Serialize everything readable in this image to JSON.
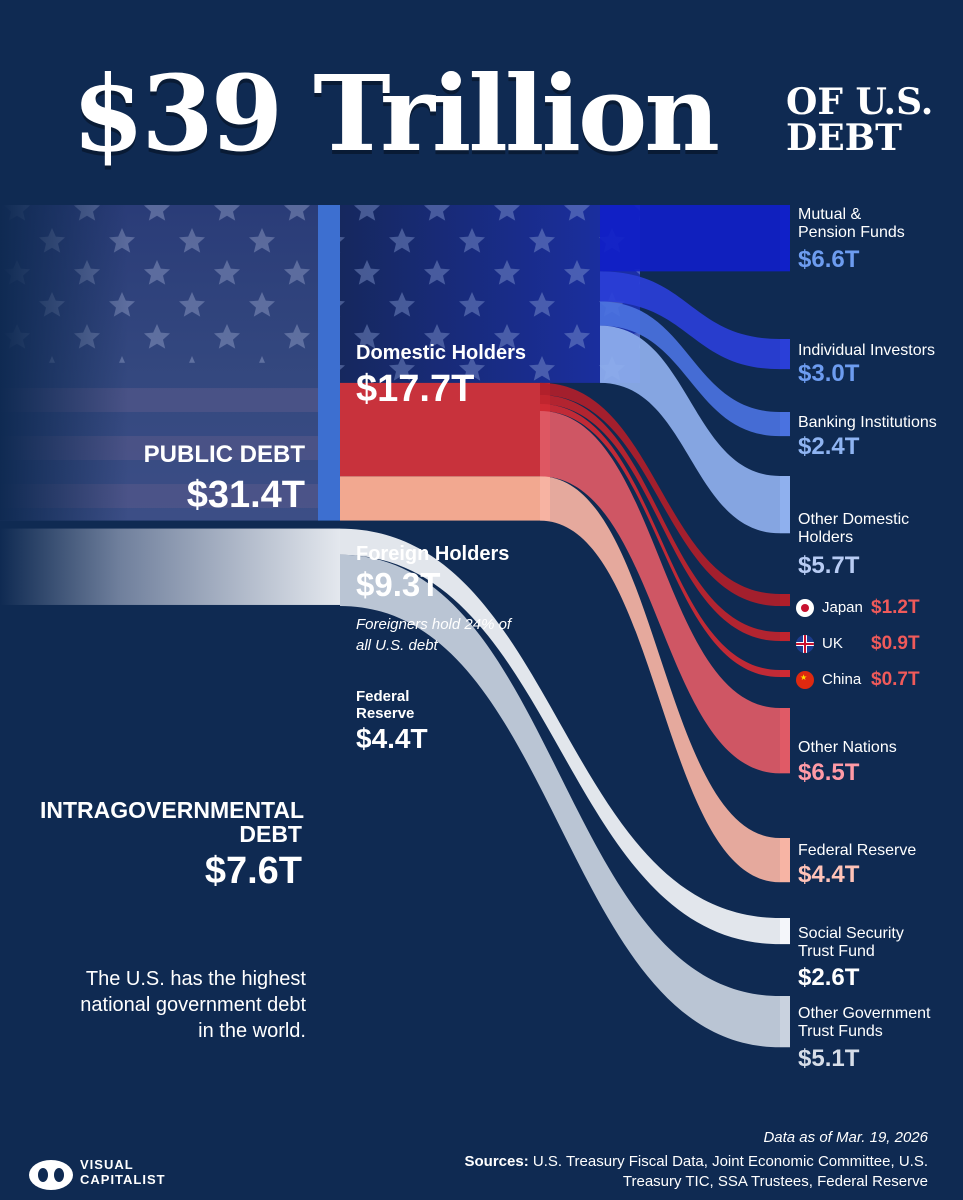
{
  "title": {
    "main": "$39 Trillion",
    "side": "OF U.S. DEBT"
  },
  "chart_data": {
    "type": "sankey",
    "unit": "$T",
    "nodes": [
      {
        "id": "public",
        "label": "PUBLIC DEBT",
        "value": 31.4,
        "display": "$31.4T"
      },
      {
        "id": "intragov",
        "label": "INTRAGOVERNMENTAL DEBT",
        "value": 7.6,
        "display": "$7.6T"
      },
      {
        "id": "domestic",
        "label": "Domestic Holders",
        "value": 17.7,
        "display": "$17.7T"
      },
      {
        "id": "foreign",
        "label": "Foreign Holders",
        "value": 9.3,
        "display": "$9.3T"
      },
      {
        "id": "fed",
        "label": "Federal Reserve",
        "value": 4.4,
        "display": "$4.4T"
      },
      {
        "id": "mutual",
        "label": "Mutual & Pension Funds",
        "value": 6.6,
        "display": "$6.6T"
      },
      {
        "id": "individual",
        "label": "Individual Investors",
        "value": 3.0,
        "display": "$3.0T"
      },
      {
        "id": "banking",
        "label": "Banking Institutions",
        "value": 2.4,
        "display": "$2.4T"
      },
      {
        "id": "other_domestic",
        "label": "Other Domestic Holders",
        "value": 5.7,
        "display": "$5.7T"
      },
      {
        "id": "japan",
        "label": "Japan",
        "value": 1.2,
        "display": "$1.2T"
      },
      {
        "id": "uk",
        "label": "UK",
        "value": 0.9,
        "display": "$0.9T"
      },
      {
        "id": "china",
        "label": "China",
        "value": 0.7,
        "display": "$0.7T"
      },
      {
        "id": "other_nations",
        "label": "Other Nations",
        "value": 6.5,
        "display": "$6.5T"
      },
      {
        "id": "fed_out",
        "label": "Federal Reserve",
        "value": 4.4,
        "display": "$4.4T"
      },
      {
        "id": "ssa",
        "label": "Social Security Trust Fund",
        "value": 2.6,
        "display": "$2.6T"
      },
      {
        "id": "other_gov",
        "label": "Other Government Trust Funds",
        "value": 5.1,
        "display": "$5.1T"
      }
    ],
    "links": [
      {
        "source": "public",
        "target": "domestic",
        "value": 17.7
      },
      {
        "source": "public",
        "target": "foreign",
        "value": 9.3
      },
      {
        "source": "public",
        "target": "fed",
        "value": 4.4
      },
      {
        "source": "domestic",
        "target": "mutual",
        "value": 6.6
      },
      {
        "source": "domestic",
        "target": "individual",
        "value": 3.0
      },
      {
        "source": "domestic",
        "target": "banking",
        "value": 2.4
      },
      {
        "source": "domestic",
        "target": "other_domestic",
        "value": 5.7
      },
      {
        "source": "foreign",
        "target": "japan",
        "value": 1.2
      },
      {
        "source": "foreign",
        "target": "uk",
        "value": 0.9
      },
      {
        "source": "foreign",
        "target": "china",
        "value": 0.7
      },
      {
        "source": "foreign",
        "target": "other_nations",
        "value": 6.5
      },
      {
        "source": "fed",
        "target": "fed_out",
        "value": 4.4
      },
      {
        "source": "intragov",
        "target": "ssa",
        "value": 2.6
      },
      {
        "source": "intragov",
        "target": "other_gov",
        "value": 5.1
      }
    ]
  },
  "labels": {
    "public_title": "PUBLIC DEBT",
    "public_value": "$31.4T",
    "intragov_title": "INTRAGOVERNMENTAL DEBT",
    "intragov_value": "$7.6T",
    "domestic_title": "Domestic Holders",
    "domestic_value": "$17.7T",
    "foreign_title": "Foreign Holders",
    "foreign_value": "$9.3T",
    "foreign_note": "Foreigners hold 24% of all U.S. debt",
    "fed_title": "Federal Reserve",
    "fed_value": "$4.4T",
    "mutual_title": "Mutual & Pension Funds",
    "mutual_value": "$6.6T",
    "individual_title": "Individual Investors",
    "individual_value": "$3.0T",
    "banking_title": "Banking Institutions",
    "banking_value": "$2.4T",
    "otherdom_title": "Other Domestic Holders",
    "otherdom_value": "$5.7T",
    "japan_title": "Japan",
    "japan_value": "$1.2T",
    "uk_title": "UK",
    "uk_value": "$0.9T",
    "china_title": "China",
    "china_value": "$0.7T",
    "othernations_title": "Other Nations",
    "othernations_value": "$6.5T",
    "fedout_title": "Federal Reserve",
    "fedout_value": "$4.4T",
    "ssa_title": "Social Security Trust Fund",
    "ssa_value": "$2.6T",
    "othergov_title": "Other Government Trust Funds",
    "othergov_value": "$5.1T"
  },
  "note": "The U.S. has the highest national government debt in the world.",
  "footer": {
    "date": "Data as of Mar. 19, 2026",
    "sources_label": "Sources:",
    "sources_text": "U.S. Treasury Fiscal Data, Joint Economic Committee, U.S. Treasury TIC, SSA Trustees, Federal Reserve",
    "brand": "VISUAL CAPITALIST"
  },
  "colors": {
    "background": "#0f2a52",
    "domestic": "#1b2fa8",
    "mutual": "#1020c8",
    "individual": "#2a3fd8",
    "banking": "#4a72e0",
    "other_domestic": "#8fb0ee",
    "foreign": "#c8323c",
    "japan": "#b01e2a",
    "uk": "#c0242e",
    "china": "#d02a34",
    "other_nations": "#e05a66",
    "fed": "#f2a890",
    "intragov": "#d7dde6",
    "value_blue": "#6d9cf0",
    "value_red": "#f05a5a",
    "value_pink": "#ffc3b8"
  }
}
